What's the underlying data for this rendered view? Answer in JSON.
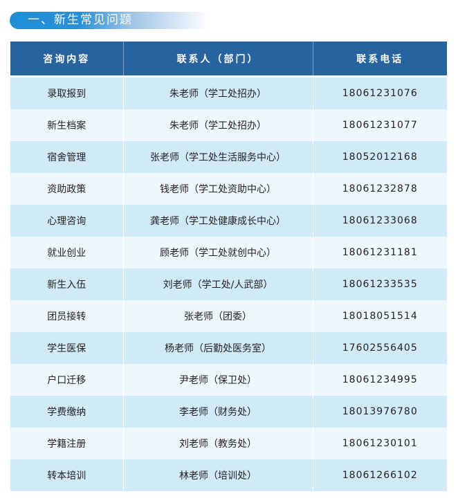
{
  "section_title": "一、新生常见问题",
  "colors": {
    "header_bg": "#26639f",
    "row_dark": "#d0eaf8",
    "row_light": "#eef7fc",
    "banner": "#1f8ed6"
  },
  "table": {
    "headers": [
      "咨询内容",
      "联系人（部门）",
      "联系电话"
    ],
    "rows": [
      [
        "录取报到",
        "朱老师（学工处招办）",
        "18061231076"
      ],
      [
        "新生档案",
        "朱老师（学工处招办）",
        "18061231077"
      ],
      [
        "宿舍管理",
        "张老师（学工处生活服务中心）",
        "18052012168"
      ],
      [
        "资助政策",
        "钱老师（学工处资助中心）",
        "18061232878"
      ],
      [
        "心理咨询",
        "龚老师（学工处健康成长中心）",
        "18061233068"
      ],
      [
        "就业创业",
        "顾老师（学工处就创中心）",
        "18061231181"
      ],
      [
        "新生入伍",
        "刘老师（学工处/人武部）",
        "18061233535"
      ],
      [
        "团员接转",
        "张老师（团委）",
        "18018051514"
      ],
      [
        "学生医保",
        "杨老师（后勤处医务室）",
        "17602556405"
      ],
      [
        "户口迁移",
        "尹老师（保卫处）",
        "18061234995"
      ],
      [
        "学费缴纳",
        "李老师（财务处）",
        "18013976780"
      ],
      [
        "学籍注册",
        "刘老师（教务处）",
        "18061230101"
      ],
      [
        "转本培训",
        "林老师（培训处）",
        "18061266102"
      ]
    ]
  }
}
